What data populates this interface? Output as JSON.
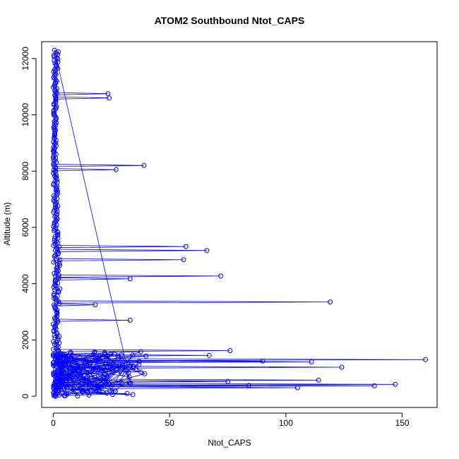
{
  "chart_data": {
    "type": "line",
    "title": "ATOM2 Southbound Ntot_CAPS",
    "xlabel": "Ntot_CAPS",
    "ylabel": "Altitude (m)",
    "xlim": [
      -5,
      165
    ],
    "ylim": [
      -400,
      12600
    ],
    "x_ticks": [
      0,
      50,
      100,
      150
    ],
    "y_ticks": [
      0,
      2000,
      4000,
      6000,
      8000,
      10000,
      12000
    ],
    "marker": "open-circle",
    "series_color": "#0000ff",
    "spine_profile": [
      {
        "y": 0,
        "x": 1.0
      },
      {
        "y": 400,
        "x": 2.5
      },
      {
        "y": 800,
        "x": 3.0
      },
      {
        "y": 1200,
        "x": 2.8
      },
      {
        "y": 1600,
        "x": 2.2
      },
      {
        "y": 2000,
        "x": 1.6
      },
      {
        "y": 3000,
        "x": 1.5
      },
      {
        "y": 4000,
        "x": 2.0
      },
      {
        "y": 5000,
        "x": 1.8
      },
      {
        "y": 6000,
        "x": 1.4
      },
      {
        "y": 7000,
        "x": 1.2
      },
      {
        "y": 8000,
        "x": 1.0
      },
      {
        "y": 9000,
        "x": 0.8
      },
      {
        "y": 10000,
        "x": 0.8
      },
      {
        "y": 11000,
        "x": 1.0
      },
      {
        "y": 12000,
        "x": 1.5
      },
      {
        "y": 12300,
        "x": 1.5
      }
    ],
    "excursions": [
      {
        "x": 23.5,
        "y": 10750
      },
      {
        "x": 24,
        "y": 10600
      },
      {
        "x": 39,
        "y": 8200
      },
      {
        "x": 27,
        "y": 8050
      },
      {
        "x": 57,
        "y": 5320
      },
      {
        "x": 66,
        "y": 5180
      },
      {
        "x": 56,
        "y": 4850
      },
      {
        "x": 72,
        "y": 4270
      },
      {
        "x": 33,
        "y": 4170
      },
      {
        "x": 119,
        "y": 3350
      },
      {
        "x": 18,
        "y": 3250
      },
      {
        "x": 33,
        "y": 2700
      },
      {
        "x": 76,
        "y": 1620
      },
      {
        "x": 67,
        "y": 1450
      },
      {
        "x": 160,
        "y": 1300
      },
      {
        "x": 111,
        "y": 1220
      },
      {
        "x": 124,
        "y": 1030
      },
      {
        "x": 90,
        "y": 1250
      },
      {
        "x": 114,
        "y": 570
      },
      {
        "x": 147,
        "y": 420
      },
      {
        "x": 138,
        "y": 370
      },
      {
        "x": 105,
        "y": 300
      },
      {
        "x": 84,
        "y": 380
      },
      {
        "x": 75,
        "y": 520
      }
    ]
  }
}
